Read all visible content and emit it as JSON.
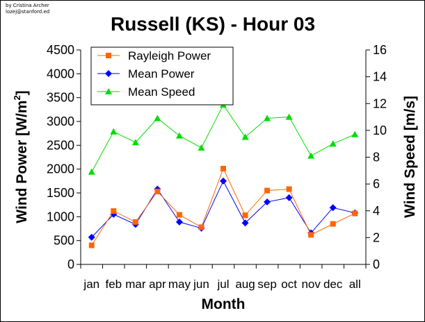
{
  "credit": {
    "line1": "by Cristina Archer",
    "line2": "lozej@stanford.ed"
  },
  "chart_data": {
    "type": "line",
    "title": "Russell (KS) - Hour 03",
    "xlabel": "Month",
    "ylabel": "Wind Power [W/m",
    "ylabel_sup": "2",
    "ylabel_end": "]",
    "y2label": "Wind Speed [m/s]",
    "categories": [
      "jan",
      "feb",
      "mar",
      "apr",
      "may",
      "jun",
      "jul",
      "aug",
      "sep",
      "oct",
      "nov",
      "dec",
      "all"
    ],
    "ylim": [
      0,
      4500
    ],
    "y2lim": [
      0,
      16
    ],
    "yticks": [
      "0",
      "500",
      "1000",
      "1500",
      "2000",
      "2500",
      "3000",
      "3500",
      "4000",
      "4500"
    ],
    "y2ticks": [
      "0",
      "2",
      "4",
      "6",
      "8",
      "10",
      "12",
      "14",
      "16"
    ],
    "legend_position": "top-left",
    "series": [
      {
        "name": "Rayleigh Power",
        "axis": "left",
        "color": "#ff6600",
        "marker": "square",
        "values": [
          400,
          1120,
          890,
          1530,
          1040,
          780,
          2010,
          1030,
          1550,
          1580,
          620,
          850,
          1070
        ]
      },
      {
        "name": "Mean Power",
        "axis": "left",
        "color": "#0000ff",
        "marker": "diamond",
        "values": [
          570,
          1050,
          840,
          1580,
          890,
          760,
          1750,
          870,
          1310,
          1400,
          660,
          1190,
          1080
        ]
      },
      {
        "name": "Mean Speed",
        "axis": "right",
        "color": "#00dd00",
        "marker": "triangle",
        "values": [
          6.9,
          9.9,
          9.1,
          10.9,
          9.6,
          8.7,
          11.9,
          9.5,
          10.9,
          11.0,
          8.1,
          9.0,
          9.7
        ]
      }
    ]
  }
}
